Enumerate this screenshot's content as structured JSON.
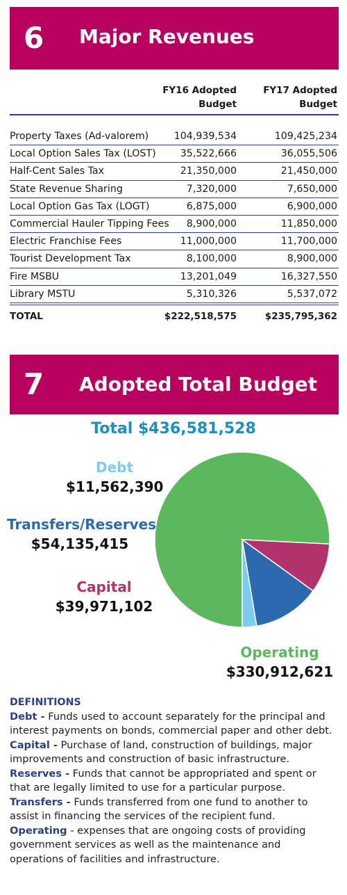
{
  "section6": {
    "number": "6",
    "title": "Major Revenues",
    "columns": [
      "FY16 Adopted Budget",
      "FY17 Adopted Budget"
    ],
    "rows": [
      {
        "label": "Property Taxes (Ad-valorem)",
        "fy16": "104,939,534",
        "fy17": "109,425,234"
      },
      {
        "label": "Local Option Sales Tax (LOST)",
        "fy16": "35,522,666",
        "fy17": "36,055,506"
      },
      {
        "label": "Half-Cent Sales Tax",
        "fy16": "21,350,000",
        "fy17": "21,450,000"
      },
      {
        "label": "State Revenue Sharing",
        "fy16": "7,320,000",
        "fy17": "7,650,000"
      },
      {
        "label": "Local Option Gas Tax (LOGT)",
        "fy16": "6,875,000",
        "fy17": "6,900,000"
      },
      {
        "label": "Commercial Hauler Tipping Fees",
        "fy16": "8,900,000",
        "fy17": "11,850,000"
      },
      {
        "label": "Electric Franchise Fees",
        "fy16": "11,000,000",
        "fy17": "11,700,000"
      },
      {
        "label": "Tourist Development Tax",
        "fy16": "8,100,000",
        "fy17": "8,900,000"
      },
      {
        "label": "Fire MSBU",
        "fy16": "13,201,049",
        "fy17": "16,327,550"
      },
      {
        "label": "Library MSTU",
        "fy16": "5,310,326",
        "fy17": "5,537,072"
      }
    ],
    "total": {
      "label": "TOTAL",
      "fy16": "$222,518,575",
      "fy17": "$235,795,362"
    }
  },
  "section7": {
    "number": "7",
    "title": "Adopted Total Budget"
  },
  "chart_data": [
    {
      "type": "table",
      "title": "Major Revenues",
      "columns": [
        "FY16 Adopted Budget",
        "FY17 Adopted Budget"
      ],
      "categories": [
        "Property Taxes (Ad-valorem)",
        "Local Option Sales Tax (LOST)",
        "Half-Cent Sales Tax",
        "State Revenue Sharing",
        "Local Option Gas Tax (LOGT)",
        "Commercial Hauler Tipping Fees",
        "Electric Franchise Fees",
        "Tourist Development Tax",
        "Fire MSBU",
        "Library MSTU"
      ],
      "series": [
        {
          "name": "FY16 Adopted Budget",
          "values": [
            104939534,
            35522666,
            21350000,
            7320000,
            6875000,
            8900000,
            11000000,
            8100000,
            13201049,
            5310326
          ]
        },
        {
          "name": "FY17 Adopted Budget",
          "values": [
            109425234,
            36055506,
            21450000,
            7650000,
            6900000,
            11850000,
            11700000,
            8900000,
            16327550,
            5537072
          ]
        }
      ]
    },
    {
      "type": "pie",
      "title": "Total $436,581,528",
      "start_angle_deg": 90,
      "direction": "clockwise",
      "slices": [
        {
          "name": "Operating",
          "label": "$330,912,621",
          "value": 330912621,
          "color": "#5cb85c"
        },
        {
          "name": "Capital",
          "label": "$39,971,102",
          "value": 39971102,
          "color": "#b0336b"
        },
        {
          "name": "Transfers/Reserves",
          "label": "$54,135,415",
          "value": 54135415,
          "color": "#2d69ae"
        },
        {
          "name": "Debt",
          "label": "$11,562,390",
          "value": 11562390,
          "color": "#7dcbef"
        }
      ]
    }
  ],
  "definitions": {
    "heading": "DEFINITIONS",
    "items": [
      {
        "term": "Debt -",
        "text": "Funds used to account separately for the principal and interest payments on bonds, commercial paper and other debt."
      },
      {
        "term": "Capital -",
        "text": "Purchase of land, construction of buildings, major improvements and construction of basic infrastructure."
      },
      {
        "term": "Reserves -",
        "text": "Funds that cannot be appropriated and spent or that are legally limited to use for a particular purpose."
      },
      {
        "term": "Transfers -",
        "text": "Funds transferred from one fund to another to assist in financing the services of the recipient fund."
      },
      {
        "term": "Operating",
        "text": "- expenses that are ongoing costs of providing government services as well as the maintenance and operations of facilities and infrastructure."
      }
    ]
  },
  "colors": {
    "banner": "#b8005f",
    "rule": "#2b3f8c",
    "total_caption": "#1a8fc2",
    "debt_label": "#7dcbef",
    "transfers_label": "#2d69ae",
    "capital_label": "#b0336b",
    "operating_label": "#5cb85c"
  }
}
